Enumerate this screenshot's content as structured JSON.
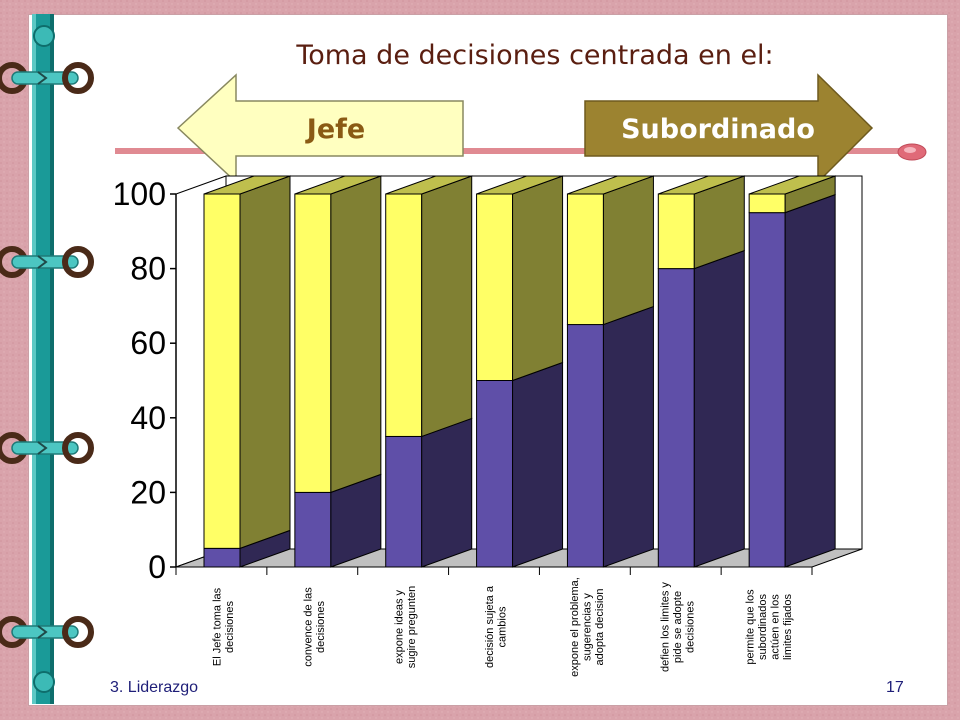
{
  "slide": {
    "title": "Toma de decisiones centrada en el:",
    "arrow_left_label": "Jefe",
    "arrow_right_label": "Subordinado",
    "footer_left": "3. Liderazgo",
    "page_number": "17"
  },
  "colors": {
    "background": "#d9a3ab",
    "binding": "#1a9a98",
    "jefe_arrow": "#ffffc0",
    "subordinado_arrow": "#9c8330",
    "series_subordinado": "#5f4fa8",
    "series_jefe": "#ffff66",
    "title_text": "#5a1e10",
    "footer_text": "#1e1e78"
  },
  "chart_data": {
    "type": "bar",
    "stacked": true,
    "three_d": true,
    "ylim": [
      0,
      100
    ],
    "yticks": [
      "0",
      "20",
      "40",
      "60",
      "80",
      "100"
    ],
    "categories": [
      [
        "El Jefe toma las",
        "decisiones"
      ],
      [
        "convence de las",
        "decisiones"
      ],
      [
        "expone ideas y",
        "sugire pregunten"
      ],
      [
        "decisión  sujeta a",
        "cambios"
      ],
      [
        "expone el problema,",
        "sugerencias y",
        "adopta decision"
      ],
      [
        "defien los limites y",
        "pide se adopte",
        "decisiones"
      ],
      [
        "permite que los",
        "subordinados",
        "actúen en los",
        "limites fijados"
      ]
    ],
    "series": [
      {
        "color": "#5f4fa8",
        "values": [
          5,
          20,
          35,
          50,
          65,
          80,
          95
        ]
      },
      {
        "color": "#ffff66",
        "values": [
          95,
          80,
          65,
          50,
          35,
          20,
          5
        ]
      }
    ]
  }
}
